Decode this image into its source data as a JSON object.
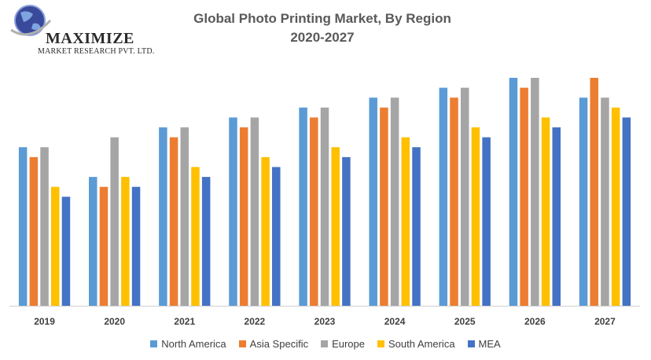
{
  "logo": {
    "name": "MAXIMIZE",
    "subtitle": "MARKET RESEARCH PVT. LTD."
  },
  "chart_data": {
    "type": "bar",
    "title": "Global Photo Printing Market, By Region",
    "subtitle": "2020-2027",
    "categories": [
      "2019",
      "2020",
      "2021",
      "2022",
      "2023",
      "2024",
      "2025",
      "2026",
      "2027"
    ],
    "ylim": [
      0,
      23
    ],
    "grid": false,
    "legend_position": "bottom",
    "series": [
      {
        "name": "North America",
        "color": "#5B9BD5",
        "values": [
          16,
          13,
          18,
          19,
          20,
          21,
          22,
          23,
          21
        ]
      },
      {
        "name": "Asia Specific",
        "color": "#ED7D31",
        "values": [
          15,
          12,
          17,
          18,
          19,
          20,
          21,
          22,
          23
        ]
      },
      {
        "name": "Europe",
        "color": "#A5A5A5",
        "values": [
          16,
          17,
          18,
          19,
          20,
          21,
          22,
          23,
          21
        ]
      },
      {
        "name": "South America",
        "color": "#FFC000",
        "values": [
          12,
          13,
          14,
          15,
          16,
          17,
          18,
          19,
          20
        ]
      },
      {
        "name": "MEA",
        "color": "#4472C4",
        "values": [
          11,
          12,
          13,
          14,
          15,
          16,
          17,
          18,
          19
        ]
      }
    ]
  }
}
